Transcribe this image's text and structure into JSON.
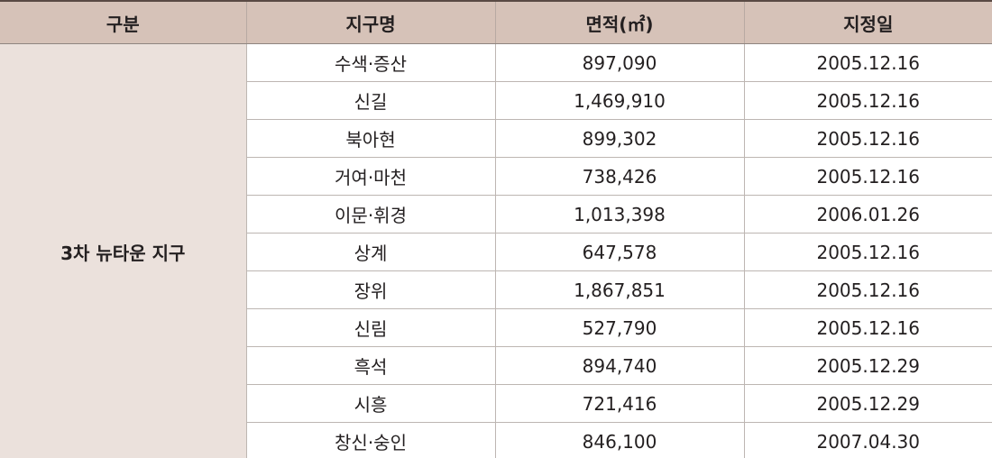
{
  "table": {
    "headers": [
      "구분",
      "지구명",
      "면적(㎡)",
      "지정일"
    ],
    "group_label": "3차 뉴타운 지구",
    "rows": [
      {
        "district": "수색·증산",
        "area": "897,090",
        "date": "2005.12.16"
      },
      {
        "district": "신길",
        "area": "1,469,910",
        "date": "2005.12.16"
      },
      {
        "district": "북아현",
        "area": "899,302",
        "date": "2005.12.16"
      },
      {
        "district": "거여·마천",
        "area": "738,426",
        "date": "2005.12.16"
      },
      {
        "district": "이문·휘경",
        "area": "1,013,398",
        "date": "2006.01.26"
      },
      {
        "district": "상계",
        "area": "647,578",
        "date": "2005.12.16"
      },
      {
        "district": "장위",
        "area": "1,867,851",
        "date": "2005.12.16"
      },
      {
        "district": "신림",
        "area": "527,790",
        "date": "2005.12.16"
      },
      {
        "district": "흑석",
        "area": "894,740",
        "date": "2005.12.29"
      },
      {
        "district": "시흥",
        "area": "721,416",
        "date": "2005.12.29"
      },
      {
        "district": "창신·숭인",
        "area": "846,100",
        "date": "2007.04.30"
      }
    ]
  }
}
